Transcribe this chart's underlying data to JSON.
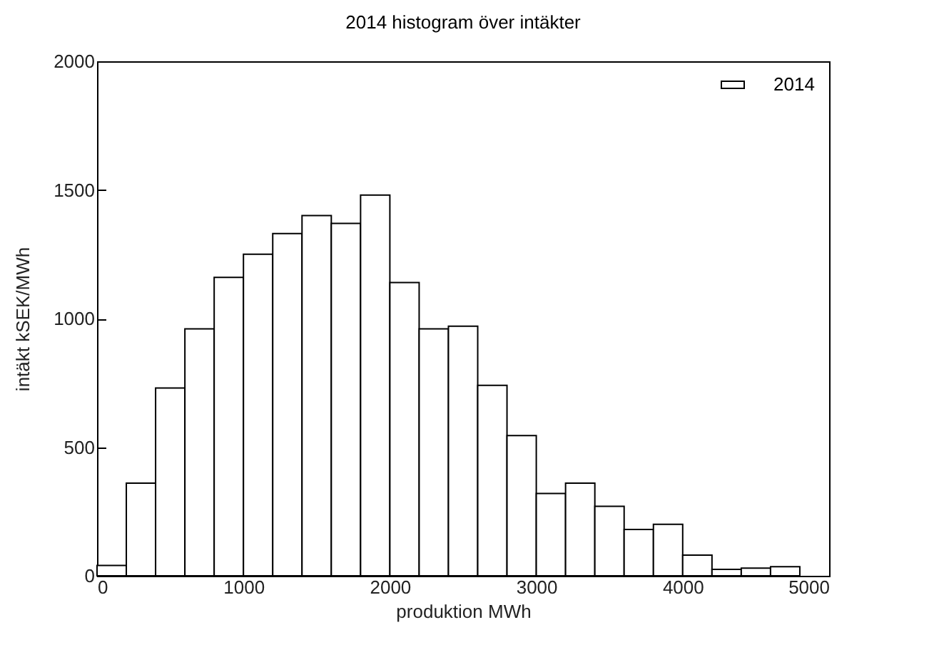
{
  "chart_data": {
    "type": "histogram",
    "title": "2014 histogram över intäkter",
    "xlabel": "produktion MWh",
    "ylabel": "intäkt kSEK/MWh",
    "bins": [
      0,
      200,
      400,
      600,
      800,
      1000,
      1200,
      1400,
      1600,
      1800,
      2000,
      2200,
      2400,
      2600,
      2800,
      3000,
      3200,
      3400,
      3600,
      3800,
      4000,
      4200,
      4400,
      4600,
      4800
    ],
    "series": [
      {
        "name": "2014",
        "color": "#ffffff",
        "values": [
          40,
          360,
          730,
          960,
          1160,
          1250,
          1330,
          1400,
          1370,
          1480,
          1140,
          960,
          970,
          740,
          545,
          320,
          360,
          270,
          180,
          200,
          80,
          25,
          30,
          35
        ]
      }
    ],
    "xlim": [
      0,
      5000
    ],
    "xticks": [
      0,
      1000,
      2000,
      3000,
      4000,
      5000
    ],
    "ylim": [
      0,
      2000
    ],
    "yticks": [
      0,
      500,
      1000,
      1500,
      2000
    ],
    "legend": "top right"
  }
}
